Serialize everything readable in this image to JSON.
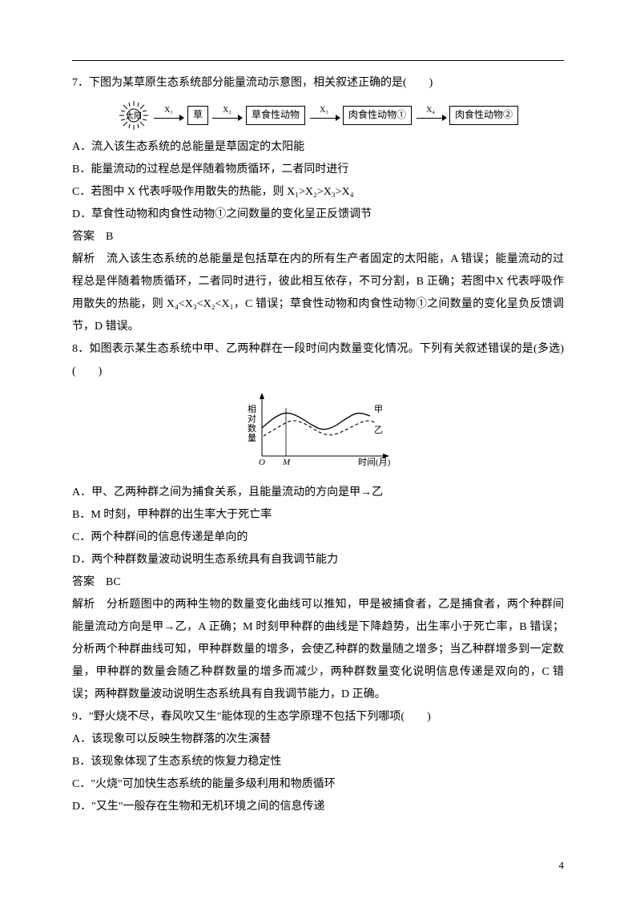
{
  "q7": {
    "stem": "7．下图为某草原生态系统部分能量流动示意图，相关叙述正确的是(　　)",
    "diagram": {
      "sun_label": "太阳",
      "arrows": [
        "X₁",
        "X₂",
        "X₃",
        "X₄"
      ],
      "nodes": [
        "草",
        "草食性动物",
        "肉食性动物①",
        "肉食性动物②"
      ],
      "box_border_color": "#000000"
    },
    "optA": "A．流入该生态系统的总能量是草固定的太阳能",
    "optB": "B．能量流动的过程总是伴随着物质循环，二者同时进行",
    "optC": "C．若图中 X 代表呼吸作用散失的热能，则 X₁>X₂>X₃>X₄",
    "optD": "D．草食性动物和肉食性动物①之间数量的变化呈正反馈调节",
    "answer": "答案　B",
    "explain": "解析　流入该生态系统的总能量是包括草在内的所有生产者固定的太阳能，A 错误；能量流动的过程总是伴随着物质循环，二者同时进行，彼此相互依存，不可分割，B 正确；若图中X 代表呼吸作用散失的热能，则 X₄<X₃<X₂<X₁，C 错误；草食性动物和肉食性动物①之间数量的变化呈负反馈调节，D 错误。"
  },
  "q8": {
    "stem": "8．如图表示某生态系统中甲、乙两种群在一段时间内数量变化情况。下列有关叙述错误的是(多选)(　　)",
    "chart": {
      "ylabel": "相对数量",
      "xlabel": "时间(月)",
      "origin": "O",
      "mark": "M",
      "series_jia_label": "甲",
      "series_yi_label": "乙",
      "jia_color": "#000000",
      "yi_color": "#000000",
      "jia_dash": "",
      "yi_dash": "4,3",
      "bg": "#ffffff",
      "jia_points": [
        [
          0,
          35
        ],
        [
          15,
          48
        ],
        [
          30,
          55
        ],
        [
          45,
          50
        ],
        [
          60,
          40
        ],
        [
          75,
          32
        ],
        [
          90,
          36
        ],
        [
          105,
          47
        ],
        [
          120,
          55
        ],
        [
          135,
          50
        ]
      ],
      "yi_points": [
        [
          2,
          25
        ],
        [
          20,
          36
        ],
        [
          38,
          46
        ],
        [
          55,
          40
        ],
        [
          70,
          30
        ],
        [
          85,
          25
        ],
        [
          100,
          30
        ],
        [
          115,
          38
        ],
        [
          130,
          45
        ],
        [
          142,
          42
        ]
      ]
    },
    "optA": "A．甲、乙两种群之间为捕食关系，且能量流动的方向是甲→乙",
    "optB": "B．M 时刻，甲种群的出生率大于死亡率",
    "optC": "C．两个种群间的信息传递是单向的",
    "optD": "D．两个种群数量波动说明生态系统具有自我调节能力",
    "answer": "答案　BC",
    "explain": "解析　分析题图中的两种生物的数量变化曲线可以推知，甲是被捕食者，乙是捕食者，两个种群间能量流动方向是甲→乙，A 正确；M 时刻甲种群的曲线是下降趋势，出生率小于死亡率，B 错误；分析两个种群曲线可知，甲种群数量的增多，会使乙种群的数量随之增多；当乙种群增多到一定数量，甲种群的数量会随乙种群数量的增多而减少，两种群数量变化说明信息传递是双向的，C 错误；两种群数量波动说明生态系统具有自我调节能力，D 正确。"
  },
  "q9": {
    "stem": "9．\"野火烧不尽，春风吹又生\"能体现的生态学原理不包括下列哪项(　　)",
    "optA": "A．该现象可以反映生物群落的次生演替",
    "optB": "B．该现象体现了生态系统的恢复力稳定性",
    "optC": "C．\"火烧\"可加快生态系统的能量多级利用和物质循环",
    "optD": "D．\"又生\"一般存在生物和无机环境之间的信息传递"
  },
  "page_number": "4"
}
